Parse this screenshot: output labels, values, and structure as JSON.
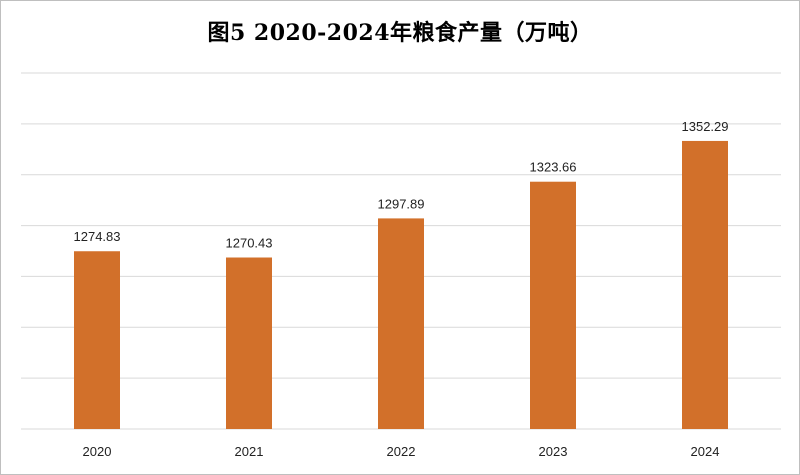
{
  "chart_data": {
    "type": "bar",
    "title": "图5  2020-2024年粮食产量（万吨）",
    "xlabel": "",
    "ylabel": "",
    "categories": [
      "2020",
      "2021",
      "2022",
      "2023",
      "2024"
    ],
    "values": [
      1274.83,
      1270.43,
      1297.89,
      1323.66,
      1352.29
    ],
    "value_labels": [
      "1274.83",
      "1270.43",
      "1297.89",
      "1323.66",
      "1352.29"
    ],
    "ylim": [
      1150,
      1400
    ],
    "gridlines": true,
    "legend": "none",
    "bar_color": "#D2702A",
    "grid_color": "#d9d9d9"
  }
}
